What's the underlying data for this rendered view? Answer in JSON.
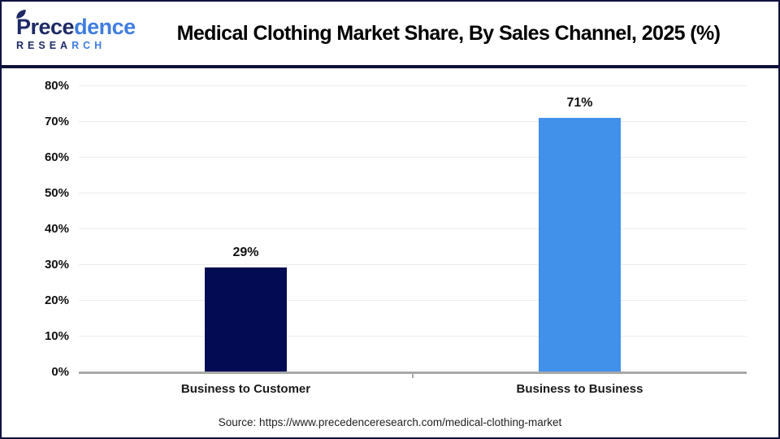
{
  "logo": {
    "word_part1": "Prece",
    "word_part2": "dence",
    "sub_part1": "RESEA",
    "sub_part2": "RCH"
  },
  "header": {
    "title": "Medical Clothing Market Share, By Sales Channel, 2025 (%)"
  },
  "source": {
    "text": "Source: https://www.precedenceresearch.com/medical-clothing-market"
  },
  "colors": {
    "frame_border": "#10123f",
    "header_separator": "#0e1238",
    "gridline": "#ececec",
    "axis_line": "#a8a8a8",
    "logo_dark": "#1e2a66",
    "logo_blue": "#3f7de0",
    "bar_business_to_customer": "#030C52",
    "bar_business_to_business": "#4190EA"
  },
  "chart_data": {
    "type": "bar",
    "title": "Medical Clothing Market Share, By Sales Channel, 2025 (%)",
    "categories": [
      "Business to Customer",
      "Business to Business"
    ],
    "values": [
      29,
      71
    ],
    "value_labels": [
      "29%",
      "71%"
    ],
    "bar_colors": [
      "#030C52",
      "#4190EA"
    ],
    "xlabel": "",
    "ylabel": "",
    "ylim": [
      0,
      80
    ],
    "ytick_step": 10,
    "ytick_labels": [
      "0%",
      "10%",
      "20%",
      "30%",
      "40%",
      "50%",
      "60%",
      "70%",
      "80%"
    ],
    "grid": true,
    "legend": false
  }
}
